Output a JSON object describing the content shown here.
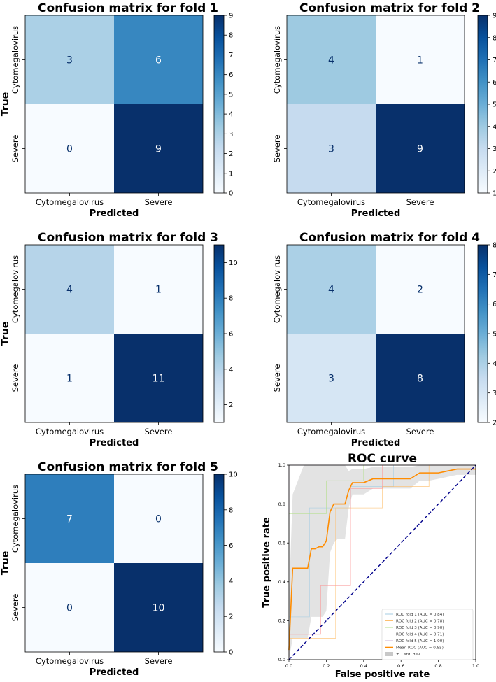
{
  "chart_data": [
    {
      "type": "heatmap",
      "title": "Confusion matrix for fold 1",
      "xlabel": "Predicted",
      "ylabel": "True",
      "x_categories": [
        "Cytomegalovirus",
        "Severe"
      ],
      "y_categories": [
        "Cytomegalovirus",
        "Severe"
      ],
      "values": [
        [
          3,
          6
        ],
        [
          0,
          9
        ]
      ],
      "colorbar": {
        "range": [
          0,
          9
        ],
        "ticks": [
          "0",
          "1",
          "2",
          "3",
          "4",
          "5",
          "6",
          "7",
          "8",
          "9"
        ]
      }
    },
    {
      "type": "heatmap",
      "title": "Confusion matrix for fold 2",
      "xlabel": "Predicted",
      "ylabel": "True",
      "x_categories": [
        "Cytomegalovirus",
        "Severe"
      ],
      "y_categories": [
        "Cytomegalovirus",
        "Severe"
      ],
      "values": [
        [
          4,
          1
        ],
        [
          3,
          9
        ]
      ],
      "colorbar": {
        "range": [
          1,
          9
        ],
        "ticks": [
          "1",
          "2",
          "3",
          "4",
          "5",
          "6",
          "7",
          "8",
          "9"
        ]
      }
    },
    {
      "type": "heatmap",
      "title": "Confusion matrix for fold 3",
      "xlabel": "Predicted",
      "ylabel": "True",
      "x_categories": [
        "Cytomegalovirus",
        "Severe"
      ],
      "y_categories": [
        "Cytomegalovirus",
        "Severe"
      ],
      "values": [
        [
          4,
          1
        ],
        [
          1,
          11
        ]
      ],
      "colorbar": {
        "range": [
          1,
          11
        ],
        "ticks": [
          "2",
          "4",
          "6",
          "8",
          "10"
        ]
      }
    },
    {
      "type": "heatmap",
      "title": "Confusion matrix for fold 4",
      "xlabel": "Predicted",
      "ylabel": "True",
      "x_categories": [
        "Cytomegalovirus",
        "Severe"
      ],
      "y_categories": [
        "Cytomegalovirus",
        "Severe"
      ],
      "values": [
        [
          4,
          2
        ],
        [
          3,
          8
        ]
      ],
      "colorbar": {
        "range": [
          2,
          8
        ],
        "ticks": [
          "2",
          "3",
          "4",
          "5",
          "6",
          "7",
          "8"
        ]
      }
    },
    {
      "type": "heatmap",
      "title": "Confusion matrix for fold 5",
      "xlabel": "Predicted",
      "ylabel": "True",
      "x_categories": [
        "Cytomegalovirus",
        "Severe"
      ],
      "y_categories": [
        "Cytomegalovirus",
        "Severe"
      ],
      "values": [
        [
          7,
          0
        ],
        [
          0,
          10
        ]
      ],
      "colorbar": {
        "range": [
          0,
          10
        ],
        "ticks": [
          "0",
          "2",
          "4",
          "6",
          "8",
          "10"
        ]
      }
    },
    {
      "type": "line",
      "title": "ROC curve",
      "xlabel": "False positive rate",
      "ylabel": "True positive rate",
      "xlim": [
        0,
        1
      ],
      "ylim": [
        0,
        1
      ],
      "xticks": [
        "0.0",
        "0.2",
        "0.4",
        "0.6",
        "0.8",
        "1.0"
      ],
      "yticks": [
        "0.0",
        "0.2",
        "0.4",
        "0.6",
        "0.8",
        "1.0"
      ],
      "legend_position": "lower-right",
      "series": [
        {
          "name": "ROC fold 1 (AUC = 0.84)",
          "color": "#a6cee3",
          "x": [
            0,
            0,
            0.11,
            0.11,
            0.33,
            0.33,
            0.56,
            0.56,
            1
          ],
          "y": [
            0,
            0.22,
            0.22,
            0.78,
            0.78,
            0.89,
            0.89,
            1,
            1
          ]
        },
        {
          "name": "ROC fold 2 (AUC = 0.78)",
          "color": "#fdbf6f",
          "x": [
            0,
            0,
            0.25,
            0.25,
            0.5,
            0.5,
            0.75,
            0.75,
            1
          ],
          "y": [
            0,
            0.11,
            0.11,
            0.78,
            0.78,
            0.89,
            0.89,
            1,
            1
          ]
        },
        {
          "name": "ROC fold 3 (AUC = 0.90)",
          "color": "#b2df8a",
          "x": [
            0,
            0,
            0.2,
            0.2,
            0.4,
            0.4,
            1
          ],
          "y": [
            0,
            0.75,
            0.75,
            0.92,
            0.92,
            1,
            1
          ]
        },
        {
          "name": "ROC fold 4 (AUC = 0.71)",
          "color": "#fb9a99",
          "x": [
            0,
            0,
            0.17,
            0.17,
            0.33,
            0.33,
            0.5,
            0.5,
            1
          ],
          "y": [
            0,
            0.13,
            0.13,
            0.38,
            0.38,
            0.88,
            0.88,
            1,
            1
          ]
        },
        {
          "name": "ROC fold 5 (AUC = 1.00)",
          "color": "#cab2d6",
          "x": [
            0,
            0,
            1
          ],
          "y": [
            0,
            1,
            1
          ]
        },
        {
          "name": "Mean ROC (AUC = 0.85)",
          "color": "#ff8c00",
          "x": [
            0,
            0.02,
            0.04,
            0.06,
            0.08,
            0.1,
            0.12,
            0.14,
            0.16,
            0.18,
            0.2,
            0.22,
            0.24,
            0.26,
            0.28,
            0.3,
            0.32,
            0.34,
            0.36,
            0.38,
            0.4,
            0.45,
            0.5,
            0.55,
            0.6,
            0.65,
            0.7,
            0.75,
            0.8,
            0.85,
            0.9,
            0.95,
            1
          ],
          "y": [
            0.05,
            0.47,
            0.47,
            0.47,
            0.47,
            0.47,
            0.57,
            0.57,
            0.58,
            0.58,
            0.61,
            0.76,
            0.8,
            0.8,
            0.8,
            0.8,
            0.87,
            0.91,
            0.91,
            0.91,
            0.91,
            0.93,
            0.93,
            0.93,
            0.93,
            0.93,
            0.96,
            0.96,
            0.96,
            0.97,
            0.98,
            0.98,
            0.98
          ]
        },
        {
          "name": "± 1 std. dev.",
          "color": "#c8c8c8",
          "x": [
            0,
            0.02,
            0.04,
            0.06,
            0.08,
            0.1,
            0.12,
            0.14,
            0.16,
            0.18,
            0.2,
            0.22,
            0.24,
            0.26,
            0.28,
            0.3,
            0.32,
            0.34,
            0.36,
            0.38,
            0.4,
            0.45,
            0.5,
            0.55,
            0.6,
            0.65,
            0.7,
            0.75,
            0.8,
            0.85,
            0.9,
            0.95,
            1
          ],
          "y_lower": [
            0,
            0.11,
            0.11,
            0.11,
            0.11,
            0.11,
            0.22,
            0.22,
            0.22,
            0.22,
            0.25,
            0.55,
            0.6,
            0.62,
            0.62,
            0.62,
            0.78,
            0.85,
            0.85,
            0.85,
            0.85,
            0.88,
            0.88,
            0.88,
            0.88,
            0.88,
            0.92,
            0.92,
            0.93,
            0.94,
            0.95,
            0.95,
            0.95
          ],
          "y_upper": [
            0.3,
            0.85,
            0.9,
            0.95,
            1,
            1,
            1,
            1,
            1,
            1,
            1,
            1,
            1,
            1,
            1,
            1,
            0.97,
            0.98,
            0.98,
            0.98,
            0.98,
            0.99,
            0.99,
            0.99,
            0.99,
            0.99,
            1,
            1,
            1,
            1,
            1,
            1,
            1
          ]
        },
        {
          "name": "chance",
          "color": "#00008b",
          "dashed": true,
          "in_legend": false,
          "x": [
            0,
            1
          ],
          "y": [
            0,
            1
          ]
        }
      ]
    }
  ]
}
